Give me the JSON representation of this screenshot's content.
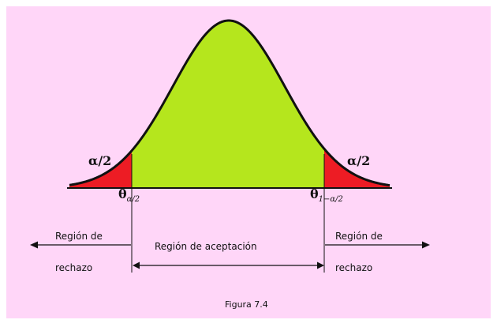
{
  "colors": {
    "background": "#ffd6f8",
    "page": "#ffffff",
    "curve": "#111111",
    "acceptance_fill": "#b5e61d",
    "rejection_fill": "#ed1c24",
    "arrows": "#111111"
  },
  "labels": {
    "alpha_left": "α/2",
    "alpha_right": "α/2",
    "theta_left_main": "θ",
    "theta_left_sub": "α/2",
    "theta_right_main": "θ",
    "theta_right_sub": "1−α/2",
    "rejection_left_line1": "Región de",
    "rejection_left_line2": "rechazo",
    "rejection_right_line1": "Región de",
    "rejection_right_line2": "rechazo",
    "acceptance": "Región de aceptación",
    "caption": "Figura 7.4"
  }
}
